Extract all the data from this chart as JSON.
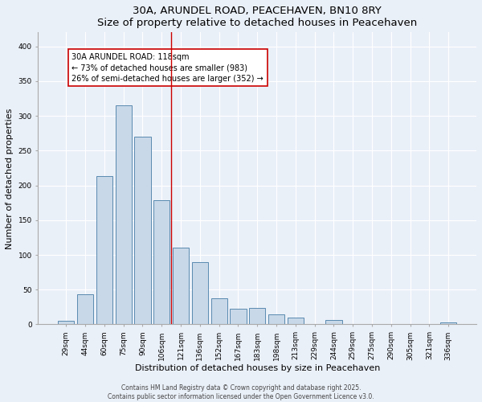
{
  "title": "30A, ARUNDEL ROAD, PEACEHAVEN, BN10 8RY",
  "subtitle": "Size of property relative to detached houses in Peacehaven",
  "xlabel": "Distribution of detached houses by size in Peacehaven",
  "ylabel": "Number of detached properties",
  "categories": [
    "29sqm",
    "44sqm",
    "60sqm",
    "75sqm",
    "90sqm",
    "106sqm",
    "121sqm",
    "136sqm",
    "152sqm",
    "167sqm",
    "183sqm",
    "198sqm",
    "213sqm",
    "229sqm",
    "244sqm",
    "259sqm",
    "275sqm",
    "290sqm",
    "305sqm",
    "321sqm",
    "336sqm"
  ],
  "values": [
    5,
    43,
    213,
    315,
    270,
    179,
    110,
    90,
    38,
    22,
    24,
    14,
    10,
    0,
    6,
    1,
    0,
    0,
    0,
    0,
    3
  ],
  "bar_color": "#c8d8e8",
  "bar_edge_color": "#5a8ab0",
  "vline_x_index": 5.5,
  "vline_color": "#cc0000",
  "annotation_title": "30A ARUNDEL ROAD: 118sqm",
  "annotation_line1": "← 73% of detached houses are smaller (983)",
  "annotation_line2": "26% of semi-detached houses are larger (352) →",
  "annotation_box_color": "#cc0000",
  "ylim": [
    0,
    420
  ],
  "yticks": [
    0,
    50,
    100,
    150,
    200,
    250,
    300,
    350,
    400
  ],
  "footer1": "Contains HM Land Registry data © Crown copyright and database right 2025.",
  "footer2": "Contains public sector information licensed under the Open Government Licence v3.0.",
  "bg_color": "#eaf0f8",
  "plot_bg_color": "#eaf0f8",
  "title_fontsize": 9.5,
  "subtitle_fontsize": 8.5,
  "tick_fontsize": 6.5,
  "ylabel_fontsize": 8,
  "xlabel_fontsize": 8,
  "annotation_fontsize": 7,
  "footer_fontsize": 5.5
}
